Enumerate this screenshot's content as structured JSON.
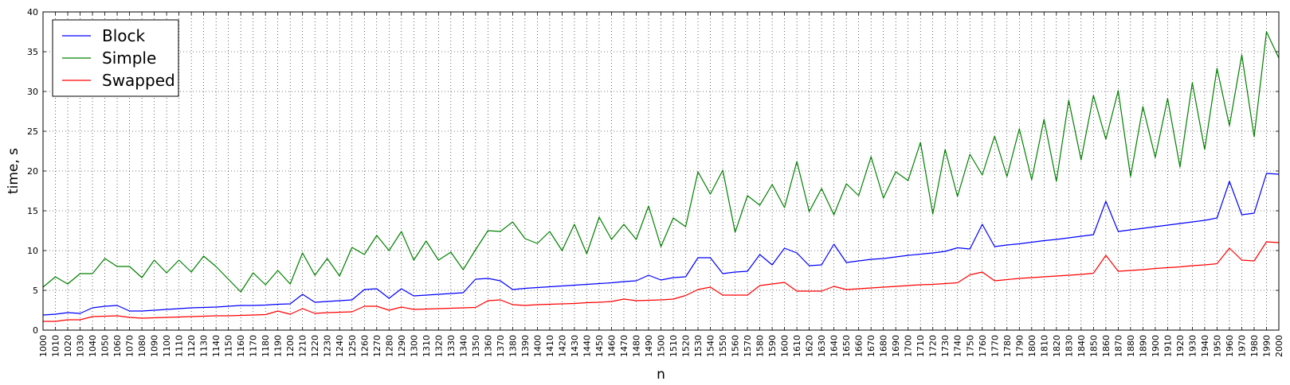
{
  "chart_data": {
    "type": "line",
    "xlabel": "n",
    "ylabel": "time, s",
    "xlim": [
      1000,
      2000
    ],
    "ylim": [
      0,
      40
    ],
    "y_ticks": [
      0,
      5,
      10,
      15,
      20,
      25,
      30,
      35,
      40
    ],
    "x_tick_step": 10,
    "grid": true,
    "legend_position": "top-left",
    "x": [
      1000,
      1010,
      1020,
      1030,
      1040,
      1050,
      1060,
      1070,
      1080,
      1090,
      1100,
      1110,
      1120,
      1130,
      1140,
      1150,
      1160,
      1170,
      1180,
      1190,
      1200,
      1210,
      1220,
      1230,
      1240,
      1250,
      1260,
      1270,
      1280,
      1290,
      1300,
      1310,
      1320,
      1330,
      1340,
      1350,
      1360,
      1370,
      1380,
      1390,
      1400,
      1410,
      1420,
      1430,
      1440,
      1450,
      1460,
      1470,
      1480,
      1490,
      1500,
      1510,
      1520,
      1530,
      1540,
      1550,
      1560,
      1570,
      1580,
      1590,
      1600,
      1610,
      1620,
      1630,
      1640,
      1650,
      1660,
      1670,
      1680,
      1690,
      1700,
      1710,
      1720,
      1730,
      1740,
      1750,
      1760,
      1770,
      1780,
      1790,
      1800,
      1810,
      1820,
      1830,
      1840,
      1850,
      1860,
      1870,
      1880,
      1890,
      1900,
      1910,
      1920,
      1930,
      1940,
      1950,
      1960,
      1970,
      1980,
      1990,
      2000
    ],
    "series": [
      {
        "name": "Block",
        "color": "#0000ff",
        "values": [
          1.9,
          2.0,
          2.2,
          2.1,
          2.8,
          3.0,
          3.1,
          2.4,
          2.4,
          2.5,
          2.6,
          2.7,
          2.8,
          2.85,
          2.9,
          3.0,
          3.1,
          3.1,
          3.15,
          3.25,
          3.3,
          4.5,
          3.5,
          3.6,
          3.7,
          3.8,
          5.1,
          5.2,
          4.0,
          5.2,
          4.3,
          4.4,
          4.5,
          4.6,
          4.7,
          6.4,
          6.5,
          6.2,
          5.1,
          5.25,
          5.35,
          5.45,
          5.55,
          5.65,
          5.75,
          5.85,
          5.95,
          6.1,
          6.2,
          6.9,
          6.3,
          6.6,
          6.7,
          9.1,
          9.1,
          7.1,
          7.3,
          7.4,
          9.5,
          8.2,
          10.3,
          9.7,
          8.1,
          8.2,
          10.8,
          8.5,
          8.7,
          8.9,
          9.0,
          9.2,
          9.4,
          9.55,
          9.7,
          9.9,
          10.35,
          10.2,
          13.3,
          10.5,
          10.7,
          10.85,
          11.05,
          11.25,
          11.4,
          11.6,
          11.8,
          12.0,
          16.2,
          12.4,
          12.6,
          12.8,
          13.0,
          13.2,
          13.4,
          13.6,
          13.8,
          14.1,
          18.7,
          14.5,
          14.7,
          19.7,
          19.6
        ]
      },
      {
        "name": "Simple",
        "color": "#008000",
        "values": [
          5.4,
          6.7,
          5.8,
          7.1,
          7.1,
          9.0,
          8.0,
          8.0,
          6.6,
          8.8,
          7.2,
          8.8,
          7.3,
          9.3,
          8.0,
          6.4,
          4.8,
          7.2,
          5.7,
          7.5,
          5.8,
          9.7,
          6.9,
          9.0,
          6.8,
          10.4,
          9.5,
          11.9,
          10.0,
          12.4,
          8.8,
          11.2,
          8.8,
          9.8,
          7.6,
          10.1,
          12.5,
          12.4,
          13.6,
          11.5,
          10.9,
          12.4,
          10.0,
          13.3,
          9.6,
          14.2,
          11.4,
          13.3,
          11.4,
          15.6,
          10.5,
          14.1,
          13.0,
          19.9,
          17.1,
          20.1,
          12.3,
          16.9,
          15.7,
          18.3,
          15.4,
          21.2,
          14.9,
          17.8,
          14.5,
          18.4,
          16.9,
          21.8,
          16.6,
          19.9,
          18.8,
          23.6,
          14.6,
          22.7,
          16.8,
          22.1,
          19.5,
          24.4,
          19.3,
          25.3,
          18.9,
          26.5,
          18.7,
          28.9,
          21.4,
          29.5,
          24.0,
          30.1,
          19.3,
          28.1,
          21.7,
          29.1,
          20.5,
          31.1,
          22.7,
          32.9,
          25.7,
          34.6,
          24.3,
          37.5,
          34.2
        ]
      },
      {
        "name": "Swapped",
        "color": "#ff0000",
        "values": [
          1.1,
          1.1,
          1.3,
          1.3,
          1.7,
          1.75,
          1.8,
          1.6,
          1.5,
          1.55,
          1.6,
          1.65,
          1.7,
          1.75,
          1.8,
          1.8,
          1.85,
          1.9,
          1.95,
          2.4,
          2.0,
          2.7,
          2.1,
          2.2,
          2.25,
          2.3,
          3.0,
          3.0,
          2.5,
          2.9,
          2.6,
          2.65,
          2.7,
          2.75,
          2.8,
          2.85,
          3.7,
          3.8,
          3.2,
          3.1,
          3.2,
          3.25,
          3.3,
          3.35,
          3.45,
          3.5,
          3.6,
          3.9,
          3.7,
          3.75,
          3.8,
          3.9,
          4.35,
          5.1,
          5.4,
          4.4,
          4.4,
          4.4,
          5.6,
          5.8,
          6.0,
          4.9,
          4.9,
          4.9,
          5.5,
          5.1,
          5.2,
          5.3,
          5.4,
          5.5,
          5.6,
          5.7,
          5.75,
          5.85,
          5.95,
          6.95,
          7.3,
          6.2,
          6.35,
          6.5,
          6.6,
          6.7,
          6.8,
          6.9,
          7.0,
          7.15,
          9.4,
          7.4,
          7.5,
          7.6,
          7.75,
          7.85,
          7.95,
          8.1,
          8.2,
          8.35,
          10.3,
          8.8,
          8.7,
          11.1,
          11.0
        ]
      }
    ]
  }
}
